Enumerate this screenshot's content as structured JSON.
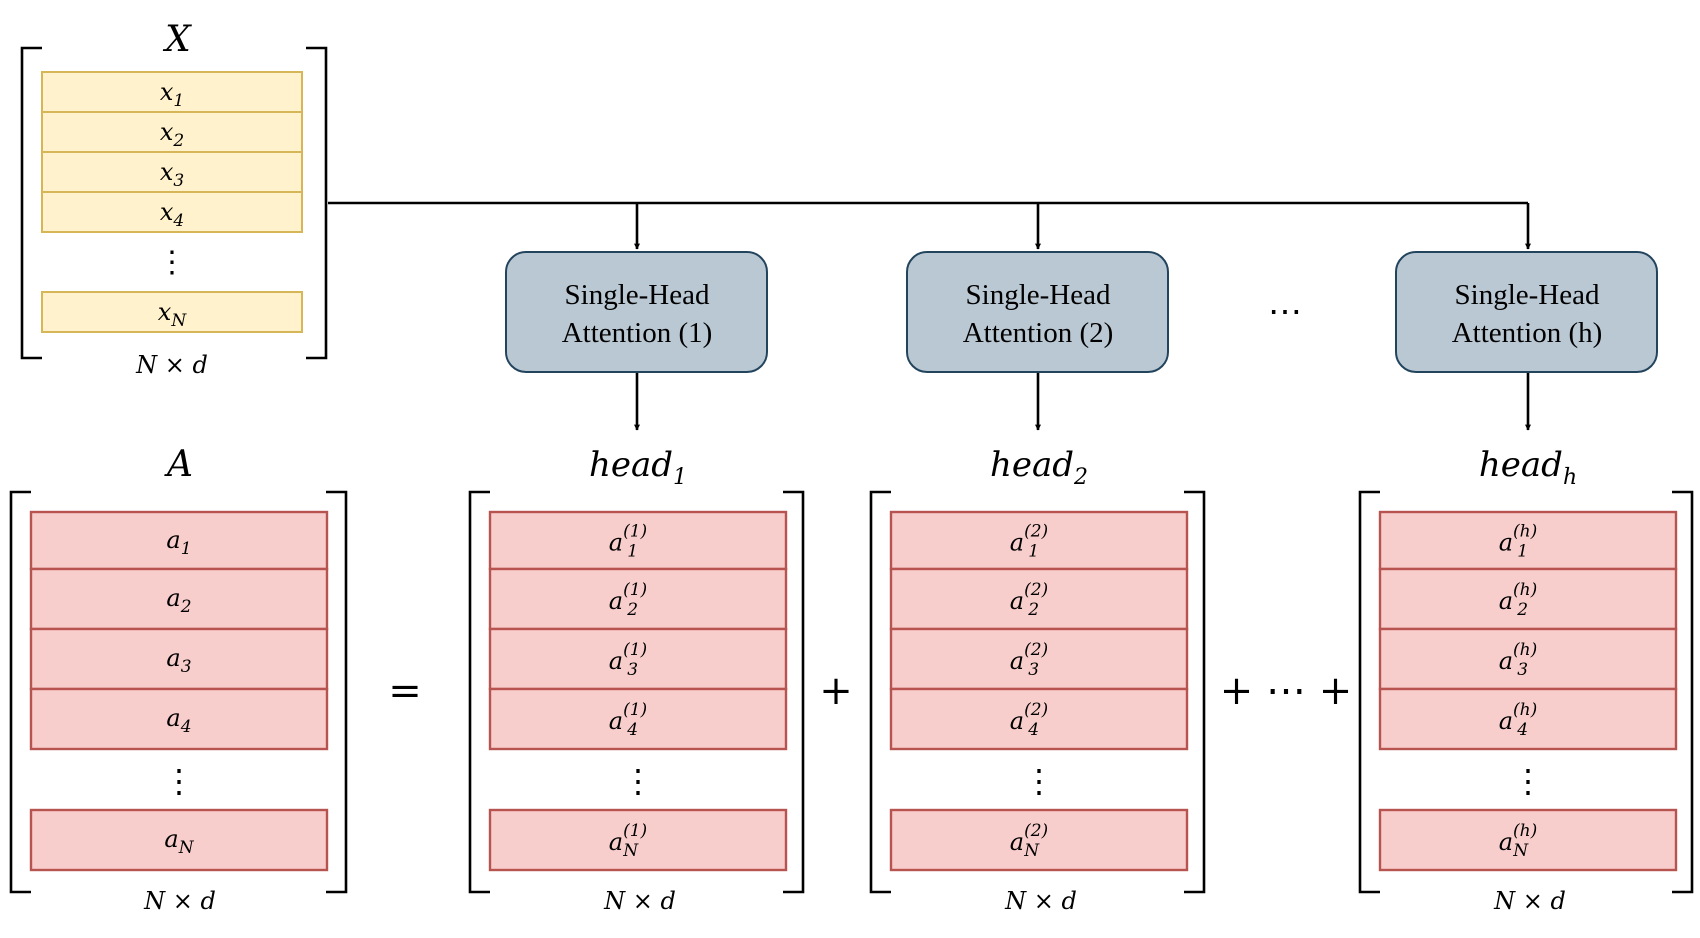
{
  "input": {
    "title": "X",
    "rows": [
      {
        "base": "x",
        "sub": "1"
      },
      {
        "base": "x",
        "sub": "2"
      },
      {
        "base": "x",
        "sub": "3"
      },
      {
        "base": "x",
        "sub": "4"
      },
      {
        "base": "x",
        "sub": "N"
      }
    ],
    "dots": "⋮",
    "dims": "N × d"
  },
  "heads": [
    {
      "box_line1": "Single-Head",
      "box_line2": "Attention (1)",
      "label": "head",
      "label_sub": "1",
      "sup": "(1)"
    },
    {
      "box_line1": "Single-Head",
      "box_line2": "Attention (2)",
      "label": "head",
      "label_sub": "2",
      "sup": "(2)"
    },
    {
      "box_line1": "Single-Head",
      "box_line2": "Attention (h)",
      "label": "head",
      "label_sub": "h",
      "sup": "(h)"
    }
  ],
  "heads_ellipsis": "⋯",
  "output": {
    "title": "A",
    "base": "a",
    "subs": [
      "1",
      "2",
      "3",
      "4",
      "N"
    ],
    "dots": "⋮",
    "dims": "N × d"
  },
  "operators": {
    "equals": "=",
    "plus": "+",
    "plus_dots_plus": "+ ⋯ +"
  }
}
